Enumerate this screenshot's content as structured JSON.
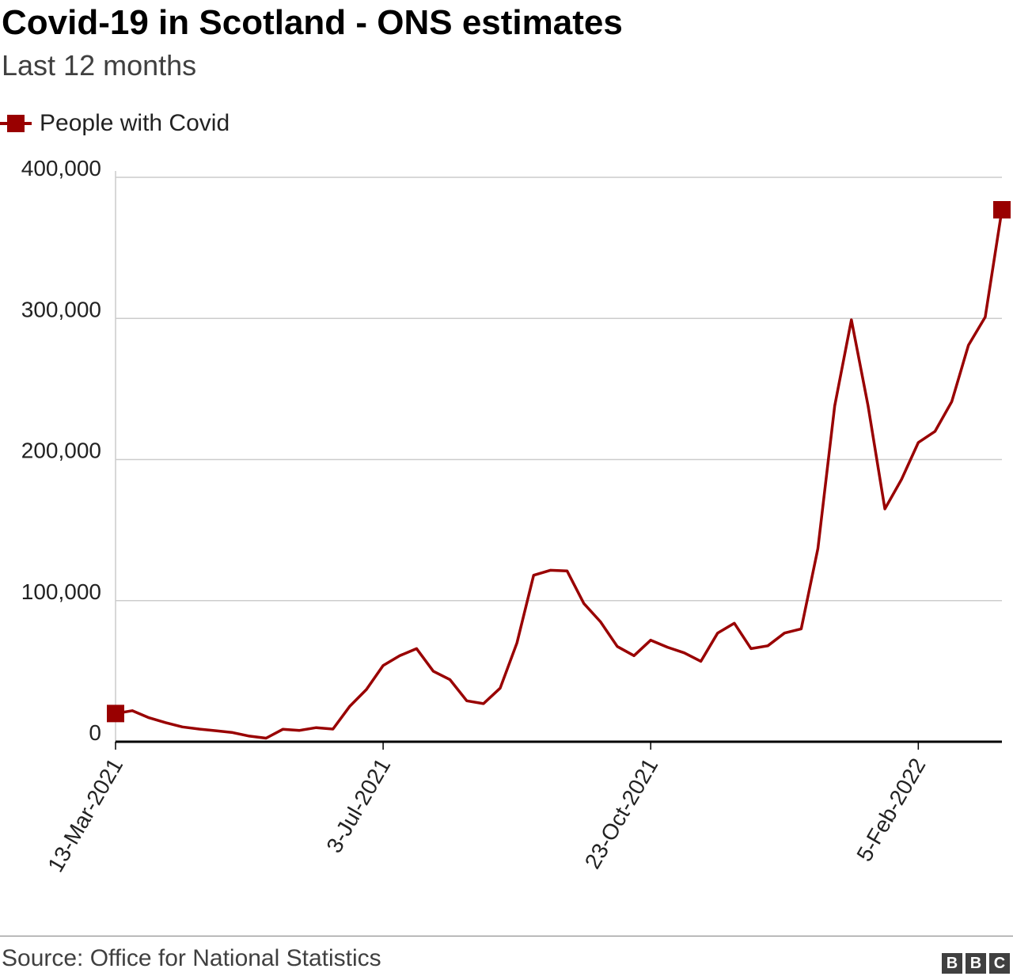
{
  "header": {
    "title": "Covid-19 in Scotland - ONS estimates",
    "subtitle": "Last 12 months"
  },
  "legend": {
    "label": "People with Covid"
  },
  "footer": {
    "source": "Source: Office for National Statistics",
    "logo_letters": [
      "B",
      "B",
      "C"
    ]
  },
  "colors": {
    "series": "#990000",
    "grid": "#cccccc",
    "axis": "#000000"
  },
  "chart_data": {
    "type": "line",
    "title": "Covid-19 in Scotland - ONS estimates",
    "subtitle": "Last 12 months",
    "xlabel": "",
    "ylabel": "",
    "ylim": [
      0,
      400000
    ],
    "yticks": [
      0,
      100000,
      200000,
      300000,
      400000
    ],
    "ytick_labels": [
      "0",
      "100,000",
      "200,000",
      "300,000",
      "400,000"
    ],
    "xtick_labels": [
      "13-Mar-2021",
      "3-Jul-2021",
      "23-Oct-2021",
      "5-Feb-2022"
    ],
    "xtick_indices": [
      0,
      16,
      32,
      48
    ],
    "grid": true,
    "legend_position": "top-left",
    "series": [
      {
        "name": "People with Covid",
        "marker_ends": true,
        "x": [
          "13-Mar-2021",
          "20-Mar-2021",
          "27-Mar-2021",
          "3-Apr-2021",
          "10-Apr-2021",
          "17-Apr-2021",
          "24-Apr-2021",
          "1-May-2021",
          "8-May-2021",
          "15-May-2021",
          "22-May-2021",
          "29-May-2021",
          "5-Jun-2021",
          "12-Jun-2021",
          "19-Jun-2021",
          "26-Jun-2021",
          "3-Jul-2021",
          "10-Jul-2021",
          "17-Jul-2021",
          "24-Jul-2021",
          "31-Jul-2021",
          "7-Aug-2021",
          "14-Aug-2021",
          "21-Aug-2021",
          "28-Aug-2021",
          "4-Sep-2021",
          "11-Sep-2021",
          "18-Sep-2021",
          "25-Sep-2021",
          "2-Oct-2021",
          "9-Oct-2021",
          "16-Oct-2021",
          "23-Oct-2021",
          "30-Oct-2021",
          "6-Nov-2021",
          "13-Nov-2021",
          "20-Nov-2021",
          "27-Nov-2021",
          "4-Dec-2021",
          "11-Dec-2021",
          "18-Dec-2021",
          "25-Dec-2021",
          "1-Jan-2022",
          "8-Jan-2022",
          "15-Jan-2022",
          "22-Jan-2022",
          "29-Jan-2022",
          "5-Feb-2022",
          "12-Feb-2022",
          "19-Feb-2022",
          "26-Feb-2022",
          "5-Mar-2022",
          "12-Mar-2022",
          "19-Mar-2022"
        ],
        "values": [
          20000,
          22000,
          17000,
          13500,
          10500,
          9000,
          7800,
          6500,
          4000,
          2500,
          8800,
          8000,
          10000,
          9000,
          25000,
          37000,
          54000,
          61000,
          66000,
          50000,
          44000,
          29000,
          27000,
          38000,
          70000,
          118000,
          121500,
          121000,
          98000,
          85000,
          67500,
          61000,
          72000,
          67000,
          63000,
          57000,
          77000,
          84000,
          66000,
          68000,
          77000,
          80000,
          137000,
          238000,
          299000,
          238000,
          165000,
          186000,
          212000,
          220000,
          241000,
          281000,
          301000,
          377000
        ]
      }
    ]
  }
}
